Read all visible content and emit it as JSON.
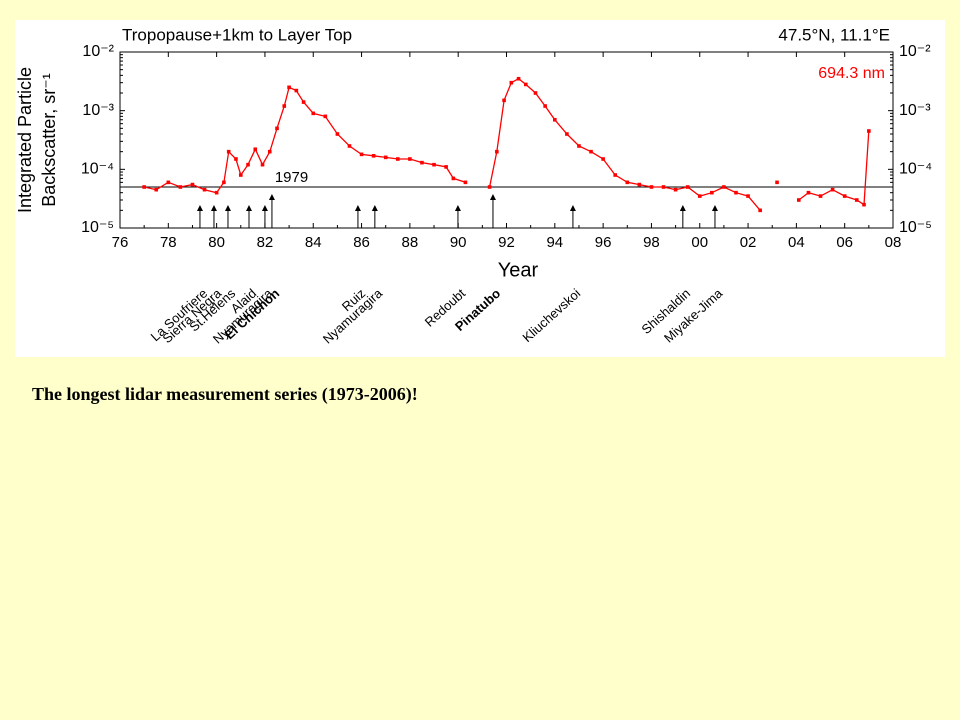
{
  "chart_data": {
    "type": "line",
    "title": "Tropopause+1km to Layer Top",
    "subtitle": "47.5°N, 11.1°E",
    "wavelength_label": "694.3 nm",
    "xlabel": "Year",
    "ylabel": [
      "Integrated Particle",
      "Backscatter, sr⁻¹"
    ],
    "log_y": true,
    "xlim": [
      1976,
      2008
    ],
    "xticks": [
      {
        "value": 1976,
        "label": "76"
      },
      {
        "value": 1978,
        "label": "78"
      },
      {
        "value": 1980,
        "label": "80"
      },
      {
        "value": 1982,
        "label": "82"
      },
      {
        "value": 1984,
        "label": "84"
      },
      {
        "value": 1986,
        "label": "86"
      },
      {
        "value": 1988,
        "label": "88"
      },
      {
        "value": 1990,
        "label": "90"
      },
      {
        "value": 1992,
        "label": "92"
      },
      {
        "value": 1994,
        "label": "94"
      },
      {
        "value": 1996,
        "label": "96"
      },
      {
        "value": 1998,
        "label": "98"
      },
      {
        "value": 2000,
        "label": "00"
      },
      {
        "value": 2002,
        "label": "02"
      },
      {
        "value": 2004,
        "label": "04"
      },
      {
        "value": 2006,
        "label": "06"
      },
      {
        "value": 2008,
        "label": "08"
      }
    ],
    "ylim": [
      1e-05,
      0.01
    ],
    "yticks": [
      {
        "value": 1e-05,
        "label": "10⁻⁵"
      },
      {
        "value": 0.0001,
        "label": "10⁻⁴"
      },
      {
        "value": 0.001,
        "label": "10⁻³"
      },
      {
        "value": 0.01,
        "label": "10⁻²"
      }
    ],
    "y2lim": [
      1e-05,
      0.01
    ],
    "y2ticks": [
      {
        "value": 1e-05,
        "label": "10⁻⁵"
      },
      {
        "value": 0.0001,
        "label": "10⁻⁴"
      },
      {
        "value": 0.001,
        "label": "10⁻³"
      },
      {
        "value": 0.01,
        "label": "10⁻²"
      }
    ],
    "reference_line": {
      "value": 5e-05,
      "label": "1979"
    },
    "series": [
      {
        "name": "694.3 nm",
        "color": "#ff0000",
        "x": [
          1977.0,
          1977.5,
          1978.0,
          1978.5,
          1979.0,
          1979.5,
          1980.0,
          1980.3,
          1980.5,
          1980.8,
          1981.0,
          1981.3,
          1981.6,
          1981.9,
          1982.2,
          1982.5,
          1982.8,
          1983.0,
          1983.3,
          1983.6,
          1984.0,
          1984.5,
          1985.0,
          1985.5,
          1986.0,
          1986.5,
          1987.0,
          1987.5,
          1988.0,
          1988.5,
          1989.0,
          1989.5,
          1989.8,
          1990.3,
          1990.8,
          1991.3,
          1991.6,
          1991.9,
          1992.2,
          1992.5,
          1992.8,
          1993.2,
          1993.6,
          1994.0,
          1994.5,
          1995.0,
          1995.5,
          1996.0,
          1996.5,
          1997.0,
          1997.5,
          1998.0,
          1998.5,
          1999.0,
          1999.5,
          2000.0,
          2000.5,
          2001.0,
          2001.5,
          2002.0,
          2002.5,
          2002.8,
          2003.2,
          2003.6,
          2004.1,
          2004.5,
          2005.0,
          2005.5,
          2006.0,
          2006.5,
          2006.8,
          2007.0
        ],
        "values": [
          5e-05,
          4.5e-05,
          6e-05,
          5e-05,
          5.5e-05,
          4.5e-05,
          4e-05,
          6e-05,
          0.0002,
          0.00015,
          8e-05,
          0.00012,
          0.00022,
          0.00012,
          0.0002,
          0.0005,
          0.0012,
          0.0025,
          0.0022,
          0.0014,
          0.0009,
          0.0008,
          0.0004,
          0.00025,
          0.00018,
          0.00017,
          0.00016,
          0.00015,
          0.00015,
          0.00013,
          0.00012,
          0.00011,
          7e-05,
          6e-05,
          null,
          5e-05,
          0.0002,
          0.0015,
          0.003,
          0.0035,
          0.0028,
          0.002,
          0.0012,
          0.0007,
          0.0004,
          0.00025,
          0.0002,
          0.00015,
          8e-05,
          6e-05,
          5.5e-05,
          5e-05,
          5e-05,
          4.5e-05,
          5e-05,
          3.5e-05,
          4e-05,
          5e-05,
          4e-05,
          3.5e-05,
          2e-05,
          null,
          6e-05,
          null,
          3e-05,
          4e-05,
          3.5e-05,
          4.5e-05,
          3.5e-05,
          3e-05,
          2.5e-05,
          0.00045
        ]
      }
    ],
    "eruptions": [
      {
        "name": "La Soufriere",
        "x": 1979.31,
        "major": false
      },
      {
        "name": "Sierra Negra",
        "x": 1979.89,
        "major": false
      },
      {
        "name": "St.Helens",
        "x": 1980.47,
        "major": false
      },
      {
        "name": "Alaid",
        "x": 1981.34,
        "major": false
      },
      {
        "name": "Nyamuragira",
        "x": 1982.0,
        "major": false
      },
      {
        "name": "El Chichon",
        "x": 1982.29,
        "major": true
      },
      {
        "name": "Ruiz",
        "x": 1985.85,
        "major": false
      },
      {
        "name": "Nyamuragira",
        "x": 1986.55,
        "major": false
      },
      {
        "name": "Redoubt",
        "x": 1989.99,
        "major": false
      },
      {
        "name": "Pinatubo",
        "x": 1991.44,
        "major": true
      },
      {
        "name": "Kliuchevskoi",
        "x": 1994.75,
        "major": false
      },
      {
        "name": "Shishaldin",
        "x": 1999.3,
        "major": false
      },
      {
        "name": "Miyake-Jima",
        "x": 2000.63,
        "major": false
      }
    ]
  },
  "caption": "The longest lidar measurement series (1973-2006)!"
}
